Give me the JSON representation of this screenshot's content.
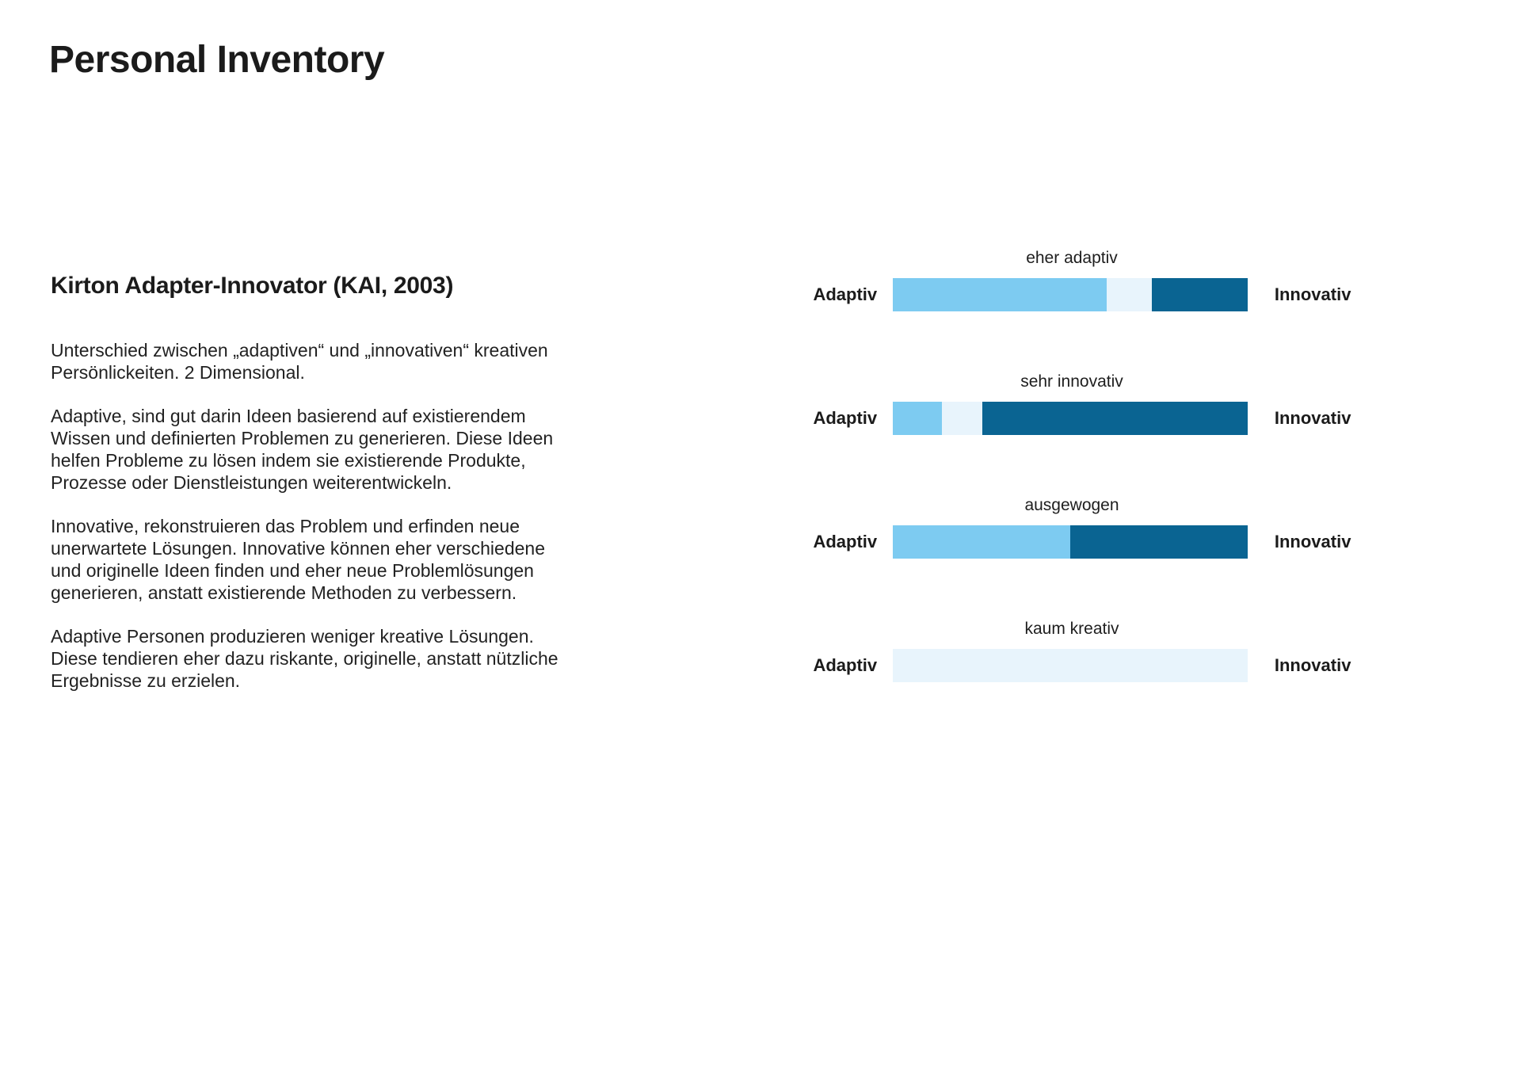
{
  "page": {
    "title": "Personal Inventory"
  },
  "section": {
    "heading": "Kirton Adapter-Innovator (KAI, 2003)",
    "paragraphs": [
      "Unterschied zwischen „adaptiven“ und „innovativen“ kreativen Persönlickeiten. 2 Dimensional.",
      "Adaptive, sind gut darin Ideen basierend auf existierendem Wissen und definierten Problemen zu generieren. Diese Ideen helfen Probleme zu lösen indem sie existierende Produkte, Prozesse oder Dienstleistungen weiterentwickeln.",
      "Innovative, rekonstruieren das Problem und erfinden neue unerwartete Lösungen. Innovative können eher verschiedene und originelle Ideen finden und eher neue Problemlösungen generieren, anstatt existierende Methoden zu verbessern.",
      "Adaptive Personen produzieren weniger kreative Lösungen. Diese tendieren eher dazu riskante, originelle, anstatt nützliche Ergebnisse zu erzielen."
    ]
  },
  "chart_data": {
    "type": "bar",
    "subtype": "horizontal-stacked-spectrum",
    "left_label": "Adaptiv",
    "right_label": "Innovativ",
    "axis_range_pct": [
      0,
      100
    ],
    "grid": false,
    "legend": "none",
    "colors": {
      "adaptiv": "#7DCBF1",
      "neutral": "#E8F4FC",
      "innovativ": "#0A6492"
    },
    "rows": [
      {
        "label": "eher adaptiv",
        "segments": [
          {
            "color": "adaptiv",
            "pct": 60.2
          },
          {
            "color": "neutral",
            "pct": 12.9
          },
          {
            "color": "innovativ",
            "pct": 26.9
          }
        ]
      },
      {
        "label": "sehr innovativ",
        "segments": [
          {
            "color": "adaptiv",
            "pct": 13.9
          },
          {
            "color": "neutral",
            "pct": 11.4
          },
          {
            "color": "innovativ",
            "pct": 74.7
          }
        ]
      },
      {
        "label": "ausgewogen",
        "segments": [
          {
            "color": "adaptiv",
            "pct": 50
          },
          {
            "color": "innovativ",
            "pct": 50
          }
        ]
      },
      {
        "label": "kaum kreativ",
        "segments": [
          {
            "color": "neutral",
            "pct": 100
          }
        ]
      }
    ]
  }
}
